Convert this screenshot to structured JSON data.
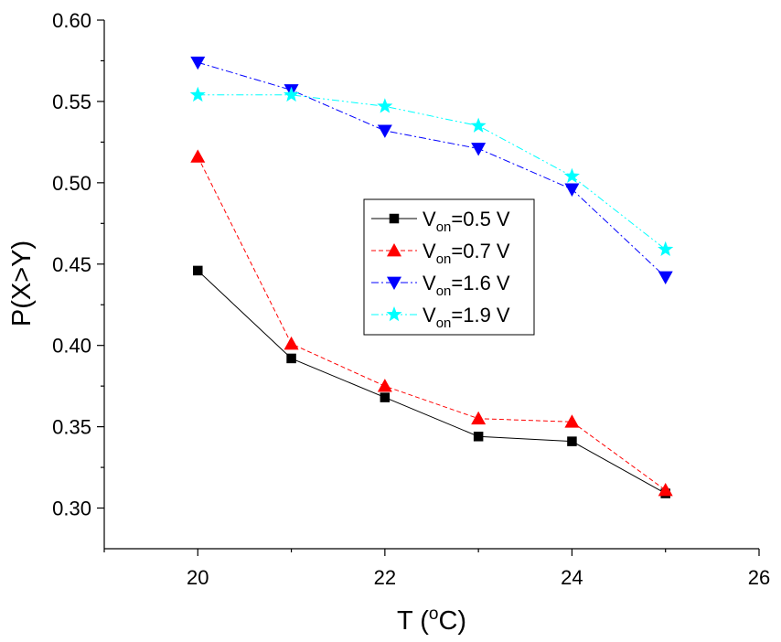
{
  "chart_data": {
    "type": "line",
    "title": "",
    "xlabel": "T (°C)",
    "xlabel_parts": {
      "prefix": "T (",
      "sup": "o",
      "suffix": "C)"
    },
    "ylabel": "P(X>Y)",
    "xlim": [
      19,
      26
    ],
    "ylim": [
      0.275,
      0.6
    ],
    "x_ticks": [
      20,
      22,
      24,
      26
    ],
    "x_minor_ticks": [
      19,
      21,
      23,
      25
    ],
    "y_ticks": [
      0.3,
      0.35,
      0.4,
      0.45,
      0.5,
      0.55,
      0.6
    ],
    "y_tick_labels": [
      "0.30",
      "0.35",
      "0.40",
      "0.45",
      "0.50",
      "0.55",
      "0.60"
    ],
    "grid": false,
    "legend_position": "center",
    "x": [
      20,
      21,
      22,
      23,
      24,
      25
    ],
    "series": [
      {
        "name": "Von=0.5 V",
        "label_main": "V",
        "label_sub": "on",
        "label_rest": "=0.5 V",
        "color": "#000000",
        "marker": "square",
        "line_style": "solid",
        "values": [
          0.446,
          0.392,
          0.368,
          0.344,
          0.341,
          0.309
        ]
      },
      {
        "name": "Von=0.7 V",
        "label_main": "V",
        "label_sub": "on",
        "label_rest": "=0.7 V",
        "color": "#ff0000",
        "marker": "triangle-up",
        "line_style": "dash",
        "values": [
          0.516,
          0.401,
          0.375,
          0.355,
          0.353,
          0.311
        ]
      },
      {
        "name": "Von=1.6 V",
        "label_main": "V",
        "label_sub": "on",
        "label_rest": "=1.6 V",
        "color": "#0000ff",
        "marker": "triangle-down",
        "line_style": "dashdot",
        "values": [
          0.574,
          0.557,
          0.532,
          0.521,
          0.496,
          0.442
        ]
      },
      {
        "name": "Von=1.9 V",
        "label_main": "V",
        "label_sub": "on",
        "label_rest": "=1.9 V",
        "color": "#00ffff",
        "marker": "star",
        "line_style": "dashdotdot",
        "values": [
          0.554,
          0.554,
          0.547,
          0.535,
          0.504,
          0.459
        ]
      }
    ]
  }
}
